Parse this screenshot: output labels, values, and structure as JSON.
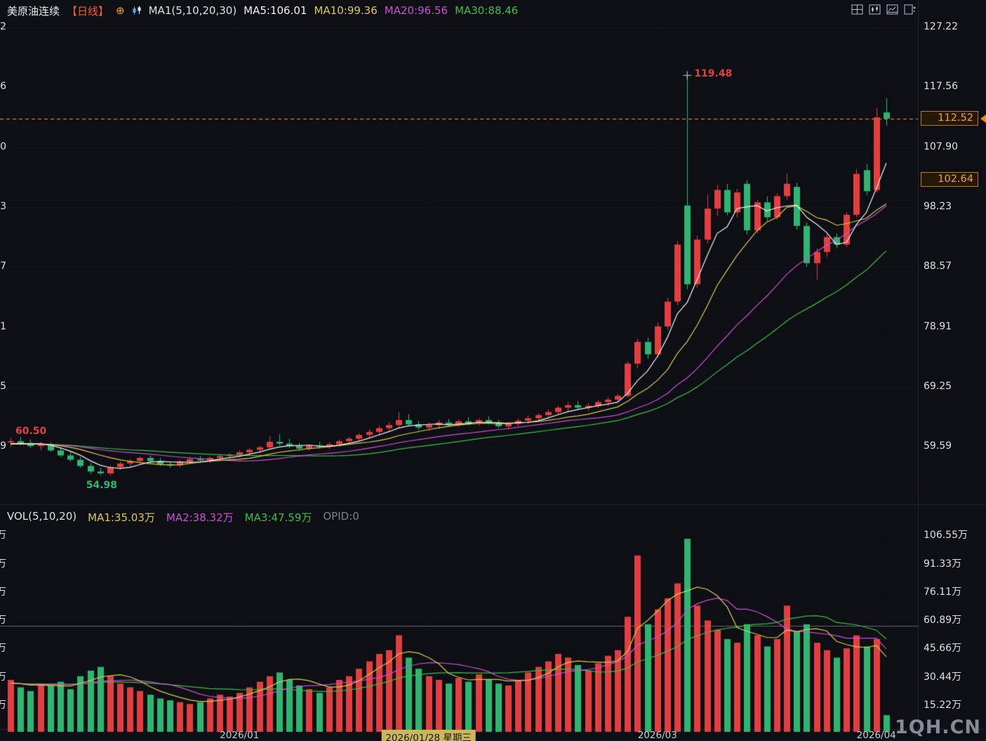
{
  "header": {
    "symbol": "美原油连续",
    "period_tag": "【日线】",
    "expand_icon": "⊕",
    "ma_group_label": "MA1(5,10,20,30)",
    "ma5": "MA5:106.01",
    "ma10": "MA10:99.36",
    "ma20": "MA20:96.56",
    "ma30": "MA30:88.46"
  },
  "toolbar_icons": [
    "pane-grid-icon",
    "pane-kline-icon",
    "pane-indicator-icon",
    "pane-add-icon"
  ],
  "volume_header": {
    "label": "VOL(5,10,20)",
    "ma1": "MA1:35.03万",
    "ma2": "MA2:38.32万",
    "ma3": "MA3:47.59万",
    "opid": "OPID:0"
  },
  "annotations": {
    "high_label": "119.48",
    "first_price_label": "60.50",
    "low_label": "54.98",
    "last_price_tag": "112.52",
    "prev_close_tag": "102.64"
  },
  "watermark": "1QH.CN",
  "colors": {
    "background": "#0d0f14",
    "up": "#e24040",
    "down": "#2fb571",
    "ma5": "#f2f3f5",
    "ma10": "#d9cb4e",
    "ma20": "#cd50d2",
    "ma30": "#3fbf45",
    "last_price": "#f5a023",
    "period_tag": "#f2602c",
    "axis_text": "#dde1e6",
    "highlight_date_bg": "#c9b75a",
    "opid_text": "#7d828a",
    "watermark_text": "#939aa1"
  },
  "chart_data": {
    "type": "candlestick+volume",
    "title": "美原油连续 日线",
    "price_axis_ticks": [
      127.22,
      117.56,
      107.9,
      98.23,
      88.57,
      78.91,
      69.25,
      59.59
    ],
    "volume_axis_ticks": [
      106.55,
      91.33,
      76.11,
      60.89,
      45.66,
      30.44,
      15.22
    ],
    "volume_unit": "万",
    "price_range": [
      51.0,
      130.5
    ],
    "volume_range": [
      0,
      112
    ],
    "last_price": 112.52,
    "prev_close": 102.64,
    "vol_ref_line": 57,
    "high_marker": {
      "index": 68,
      "price": 119.48
    },
    "low_marker": {
      "index": 9,
      "price": 54.98
    },
    "open_marker": {
      "price": 60.5
    },
    "ma_periods": [
      5,
      10,
      20,
      30
    ],
    "vol_ma_periods": [
      5,
      10,
      20
    ],
    "x_ticks": [
      {
        "index": 23,
        "label": "2026/01",
        "highlight": false
      },
      {
        "index": 42,
        "label": "2026/01/28 星期三",
        "highlight": true
      },
      {
        "index": 65,
        "label": "2026/03",
        "highlight": false
      },
      {
        "index": 87,
        "label": "2026/04",
        "highlight": false
      }
    ],
    "candles": [
      [
        "2025-12-01",
        60.3,
        61.0,
        59.6,
        60.5,
        28
      ],
      [
        "2025-12-02",
        60.5,
        61.2,
        59.9,
        60.2,
        24
      ],
      [
        "2025-12-03",
        60.2,
        60.8,
        59.4,
        59.7,
        22
      ],
      [
        "2025-12-04",
        59.7,
        60.4,
        59.0,
        60.0,
        26
      ],
      [
        "2025-12-05",
        60.0,
        60.3,
        58.8,
        59.0,
        25
      ],
      [
        "2025-12-08",
        59.0,
        59.5,
        57.9,
        58.2,
        27
      ],
      [
        "2025-12-09",
        58.2,
        58.8,
        57.2,
        57.5,
        23
      ],
      [
        "2025-12-10",
        57.5,
        58.0,
        56.2,
        56.5,
        30
      ],
      [
        "2025-12-11",
        56.5,
        57.0,
        55.2,
        55.6,
        33
      ],
      [
        "2025-12-12",
        55.6,
        56.2,
        54.98,
        55.3,
        35
      ],
      [
        "2025-12-15",
        55.3,
        56.6,
        55.0,
        56.3,
        30
      ],
      [
        "2025-12-16",
        56.3,
        57.2,
        55.9,
        56.9,
        26
      ],
      [
        "2025-12-17",
        56.9,
        57.6,
        56.4,
        57.3,
        24
      ],
      [
        "2025-12-18",
        57.3,
        58.0,
        56.8,
        57.8,
        22
      ],
      [
        "2025-12-19",
        57.8,
        58.2,
        57.0,
        57.3,
        20
      ],
      [
        "2025-12-22",
        57.3,
        57.8,
        56.5,
        56.8,
        18
      ],
      [
        "2025-12-23",
        56.8,
        57.3,
        56.2,
        56.6,
        17
      ],
      [
        "2025-12-24",
        56.6,
        57.5,
        56.3,
        57.2,
        16
      ],
      [
        "2025-12-25",
        57.2,
        57.9,
        56.9,
        57.6,
        15
      ],
      [
        "2025-12-26",
        57.6,
        58.1,
        57.1,
        57.4,
        16
      ],
      [
        "2025-12-29",
        57.4,
        58.0,
        57.0,
        57.8,
        18
      ],
      [
        "2025-12-30",
        57.8,
        58.4,
        57.4,
        58.1,
        20
      ],
      [
        "2025-12-31",
        58.1,
        58.6,
        57.7,
        58.3,
        19
      ],
      [
        "2026-01-01",
        58.3,
        59.0,
        57.9,
        58.7,
        21
      ],
      [
        "2026-01-02",
        58.7,
        59.4,
        58.2,
        59.1,
        24
      ],
      [
        "2026-01-05",
        59.1,
        59.8,
        58.6,
        59.5,
        27
      ],
      [
        "2026-01-06",
        59.5,
        61.3,
        59.2,
        60.4,
        30
      ],
      [
        "2026-01-07",
        60.4,
        61.6,
        59.8,
        60.1,
        32
      ],
      [
        "2026-01-08",
        60.1,
        60.9,
        59.4,
        59.7,
        28
      ],
      [
        "2026-01-09",
        59.7,
        60.2,
        58.9,
        59.3,
        25
      ],
      [
        "2026-01-12",
        59.3,
        60.0,
        59.0,
        59.8,
        23
      ],
      [
        "2026-01-13",
        59.8,
        60.4,
        59.3,
        59.6,
        21
      ],
      [
        "2026-01-14",
        59.6,
        60.3,
        59.2,
        60.0,
        24
      ],
      [
        "2026-01-15",
        60.0,
        60.8,
        59.7,
        60.5,
        28
      ],
      [
        "2026-01-16",
        60.5,
        61.2,
        60.1,
        60.9,
        30
      ],
      [
        "2026-01-19",
        60.9,
        61.8,
        60.5,
        61.5,
        34
      ],
      [
        "2026-01-20",
        61.5,
        62.4,
        61.0,
        62.0,
        38
      ],
      [
        "2026-01-21",
        62.0,
        63.0,
        61.5,
        62.6,
        42
      ],
      [
        "2026-01-22",
        62.6,
        63.6,
        62.0,
        63.1,
        44
      ],
      [
        "2026-01-23",
        63.1,
        65.2,
        62.7,
        63.9,
        52
      ],
      [
        "2026-01-26",
        63.9,
        64.9,
        62.9,
        63.2,
        40
      ],
      [
        "2026-01-27",
        63.2,
        63.8,
        62.3,
        62.7,
        34
      ],
      [
        "2026-01-28",
        62.7,
        63.5,
        62.2,
        63.1,
        30
      ],
      [
        "2026-01-29",
        63.1,
        63.9,
        62.6,
        63.5,
        28
      ],
      [
        "2026-01-30",
        63.5,
        64.1,
        62.9,
        63.2,
        26
      ],
      [
        "2026-02-02",
        63.2,
        64.0,
        62.8,
        63.7,
        29
      ],
      [
        "2026-02-03",
        63.7,
        64.4,
        63.1,
        63.4,
        27
      ],
      [
        "2026-02-04",
        63.4,
        64.2,
        63.0,
        63.9,
        31
      ],
      [
        "2026-02-05",
        63.9,
        64.5,
        63.2,
        63.5,
        28
      ],
      [
        "2026-02-06",
        63.5,
        64.0,
        62.6,
        62.9,
        26
      ],
      [
        "2026-02-09",
        62.9,
        63.6,
        62.4,
        63.3,
        25
      ],
      [
        "2026-02-10",
        63.3,
        64.1,
        62.9,
        63.8,
        28
      ],
      [
        "2026-02-11",
        63.8,
        64.6,
        63.3,
        64.2,
        32
      ],
      [
        "2026-02-12",
        64.2,
        65.0,
        63.8,
        64.7,
        35
      ],
      [
        "2026-02-13",
        64.7,
        65.6,
        64.2,
        65.2,
        38
      ],
      [
        "2026-02-16",
        65.2,
        66.2,
        64.8,
        65.9,
        42
      ],
      [
        "2026-02-17",
        65.9,
        66.8,
        65.3,
        66.3,
        40
      ],
      [
        "2026-02-18",
        66.3,
        67.0,
        65.6,
        65.9,
        36
      ],
      [
        "2026-02-19",
        65.9,
        66.6,
        65.4,
        66.2,
        33
      ],
      [
        "2026-02-20",
        66.2,
        67.1,
        65.8,
        66.8,
        37
      ],
      [
        "2026-02-23",
        66.8,
        67.6,
        66.2,
        67.2,
        41
      ],
      [
        "2026-02-24",
        67.2,
        68.1,
        66.8,
        67.8,
        44
      ],
      [
        "2026-02-25",
        67.8,
        73.4,
        67.5,
        73.0,
        62
      ],
      [
        "2026-02-26",
        73.0,
        77.0,
        72.2,
        76.5,
        95
      ],
      [
        "2026-02-27",
        76.5,
        77.2,
        73.8,
        74.5,
        58
      ],
      [
        "2026-03-02",
        74.5,
        79.6,
        74.0,
        79.0,
        66
      ],
      [
        "2026-03-03",
        79.0,
        83.6,
        78.4,
        83.0,
        72
      ],
      [
        "2026-03-04",
        83.0,
        92.8,
        82.4,
        92.2,
        80
      ],
      [
        "2026-03-05",
        98.5,
        119.48,
        85.0,
        85.8,
        104
      ],
      [
        "2026-03-06",
        85.8,
        93.6,
        85.2,
        93.0,
        68
      ],
      [
        "2026-03-09",
        93.0,
        100.2,
        92.4,
        98.0,
        60
      ],
      [
        "2026-03-10",
        98.0,
        101.8,
        96.8,
        101.0,
        55
      ],
      [
        "2026-03-11",
        101.0,
        102.0,
        96.9,
        97.4,
        50
      ],
      [
        "2026-03-12",
        97.4,
        101.2,
        96.6,
        100.6,
        48
      ],
      [
        "2026-03-13",
        102.0,
        102.6,
        93.8,
        94.5,
        58
      ],
      [
        "2026-03-16",
        94.5,
        99.4,
        94.0,
        99.0,
        52
      ],
      [
        "2026-03-17",
        99.0,
        100.0,
        96.0,
        96.6,
        46
      ],
      [
        "2026-03-18",
        96.6,
        100.4,
        96.2,
        100.0,
        50
      ],
      [
        "2026-03-19",
        100.0,
        103.6,
        99.4,
        102.0,
        68
      ],
      [
        "2026-03-20",
        101.5,
        102.2,
        94.6,
        95.2,
        54
      ],
      [
        "2026-03-23",
        95.2,
        95.8,
        88.6,
        89.2,
        58
      ],
      [
        "2026-03-24",
        89.2,
        91.6,
        86.5,
        91.0,
        48
      ],
      [
        "2026-03-25",
        91.0,
        93.9,
        90.2,
        93.4,
        44
      ],
      [
        "2026-03-26",
        93.4,
        94.0,
        91.6,
        92.2,
        40
      ],
      [
        "2026-03-27",
        92.2,
        97.4,
        91.8,
        97.0,
        45
      ],
      [
        "2026-03-30",
        97.0,
        104.4,
        96.6,
        103.6,
        52
      ],
      [
        "2026-03-31",
        104.2,
        105.2,
        100.2,
        100.8,
        46
      ],
      [
        "2026-04-01",
        101.0,
        114.2,
        100.6,
        112.7,
        50
      ],
      [
        "2026-04-02",
        113.5,
        115.8,
        111.4,
        112.52,
        9
      ]
    ]
  }
}
